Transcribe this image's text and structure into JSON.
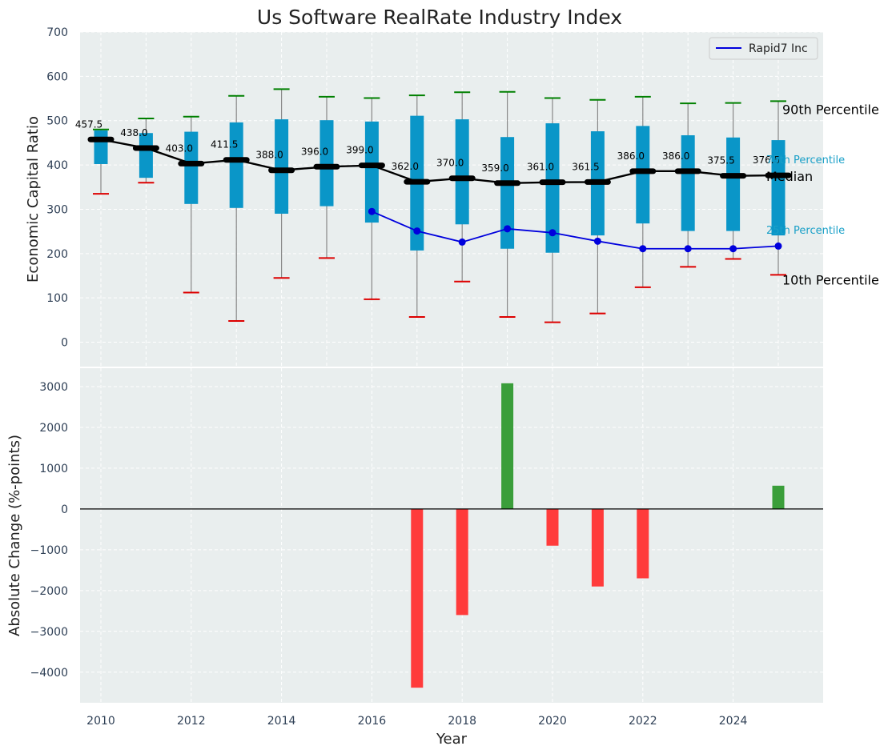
{
  "chart_data": [
    {
      "type": "box",
      "title": "Us Software RealRate Industry Index",
      "ylabel": "Economic Capital Ratio",
      "ylim": [
        -55,
        700
      ],
      "yticks": [
        0,
        100,
        200,
        300,
        400,
        500,
        600,
        700
      ],
      "grid": true,
      "legend_position": "top-right",
      "x": [
        2010,
        2011,
        2012,
        2013,
        2014,
        2015,
        2016,
        2017,
        2018,
        2019,
        2020,
        2021,
        2022,
        2023,
        2024,
        2025
      ],
      "p10": [
        335,
        360,
        112,
        48,
        145,
        190,
        97,
        57,
        137,
        57,
        45,
        65,
        124,
        170,
        188,
        152
      ],
      "p25": [
        402,
        371,
        312,
        303,
        290,
        307,
        270,
        207,
        266,
        211,
        202,
        241,
        268,
        251,
        251,
        241
      ],
      "median": [
        457.5,
        438.0,
        403.0,
        411.5,
        388.0,
        396.0,
        399.0,
        362.0,
        370.0,
        359.0,
        361.0,
        361.5,
        386.0,
        386.0,
        375.5,
        376.5
      ],
      "median_labels": [
        "457.5",
        "438.0",
        "403.0",
        "411.5",
        "388.0",
        "396.0",
        "399.0",
        "362.0",
        "370.0",
        "359.0",
        "361.0",
        "361.5",
        "386.0",
        "386.0",
        "375.5",
        "376.5"
      ],
      "p75": [
        478,
        472,
        475,
        496,
        503,
        501,
        498,
        511,
        503,
        463,
        494,
        476,
        488,
        467,
        462,
        456
      ],
      "p90": [
        480,
        505,
        509,
        556,
        571,
        554,
        551,
        557,
        564,
        565,
        551,
        547,
        554,
        539,
        540,
        544
      ],
      "company": {
        "name": "Rapid7 Inc",
        "x": [
          2016,
          2017,
          2018,
          2019,
          2020,
          2021,
          2022,
          2023,
          2024,
          2025
        ],
        "y": [
          295,
          251,
          226,
          256,
          247,
          228,
          211,
          211,
          211,
          217
        ]
      },
      "annotations": {
        "p90": "90th Percentile",
        "p75": "75th Percentile",
        "median": "Median",
        "p25": "25th Percentile",
        "p10": "10th Percentile"
      },
      "colors": {
        "box": "#0a96c8",
        "median": "#000000",
        "company": "#0000dd",
        "p90_cap": "#008000",
        "p10_cap": "#dd0000",
        "whisker": "#888888",
        "background": "#e9eeee"
      }
    },
    {
      "type": "bar",
      "xlabel": "Year",
      "ylabel": "Absolute Change (%-points)",
      "ylim": [
        -4750,
        3450
      ],
      "yticks": [
        -4000,
        -3000,
        -2000,
        -1000,
        0,
        1000,
        2000,
        3000
      ],
      "xticks": [
        2010,
        2012,
        2014,
        2016,
        2018,
        2020,
        2022,
        2024
      ],
      "grid": true,
      "x": [
        2017,
        2018,
        2019,
        2020,
        2021,
        2022,
        2025
      ],
      "values": [
        -4380,
        -2600,
        3080,
        -900,
        -1900,
        -1700,
        570
      ],
      "colors": {
        "positive": "#3a9e3a",
        "negative": "#ff3b3b",
        "zero_line": "#000000"
      }
    }
  ]
}
